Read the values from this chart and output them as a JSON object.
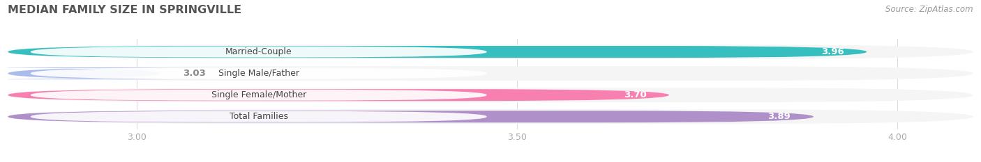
{
  "title": "MEDIAN FAMILY SIZE IN SPRINGVILLE",
  "source": "Source: ZipAtlas.com",
  "categories": [
    "Married-Couple",
    "Single Male/Father",
    "Single Female/Mother",
    "Total Families"
  ],
  "values": [
    3.96,
    3.03,
    3.7,
    3.89
  ],
  "colors": [
    "#37bfbf",
    "#aabbee",
    "#f880b0",
    "#b090c8"
  ],
  "bar_bg_color": "#ebebeb",
  "row_bg_color": "#f5f5f5",
  "xlim_min": 2.83,
  "xlim_max": 4.1,
  "xticks": [
    3.0,
    3.5,
    4.0
  ],
  "bar_height": 0.55,
  "value_outside_color": "#888888",
  "value_inside_color": "#ffffff",
  "background_color": "#ffffff",
  "title_fontsize": 11.5,
  "source_fontsize": 8.5,
  "label_fontsize": 9,
  "tick_fontsize": 9,
  "title_color": "#555555",
  "tick_color": "#aaaaaa",
  "grid_color": "#dddddd",
  "outside_value_threshold": 3.1
}
